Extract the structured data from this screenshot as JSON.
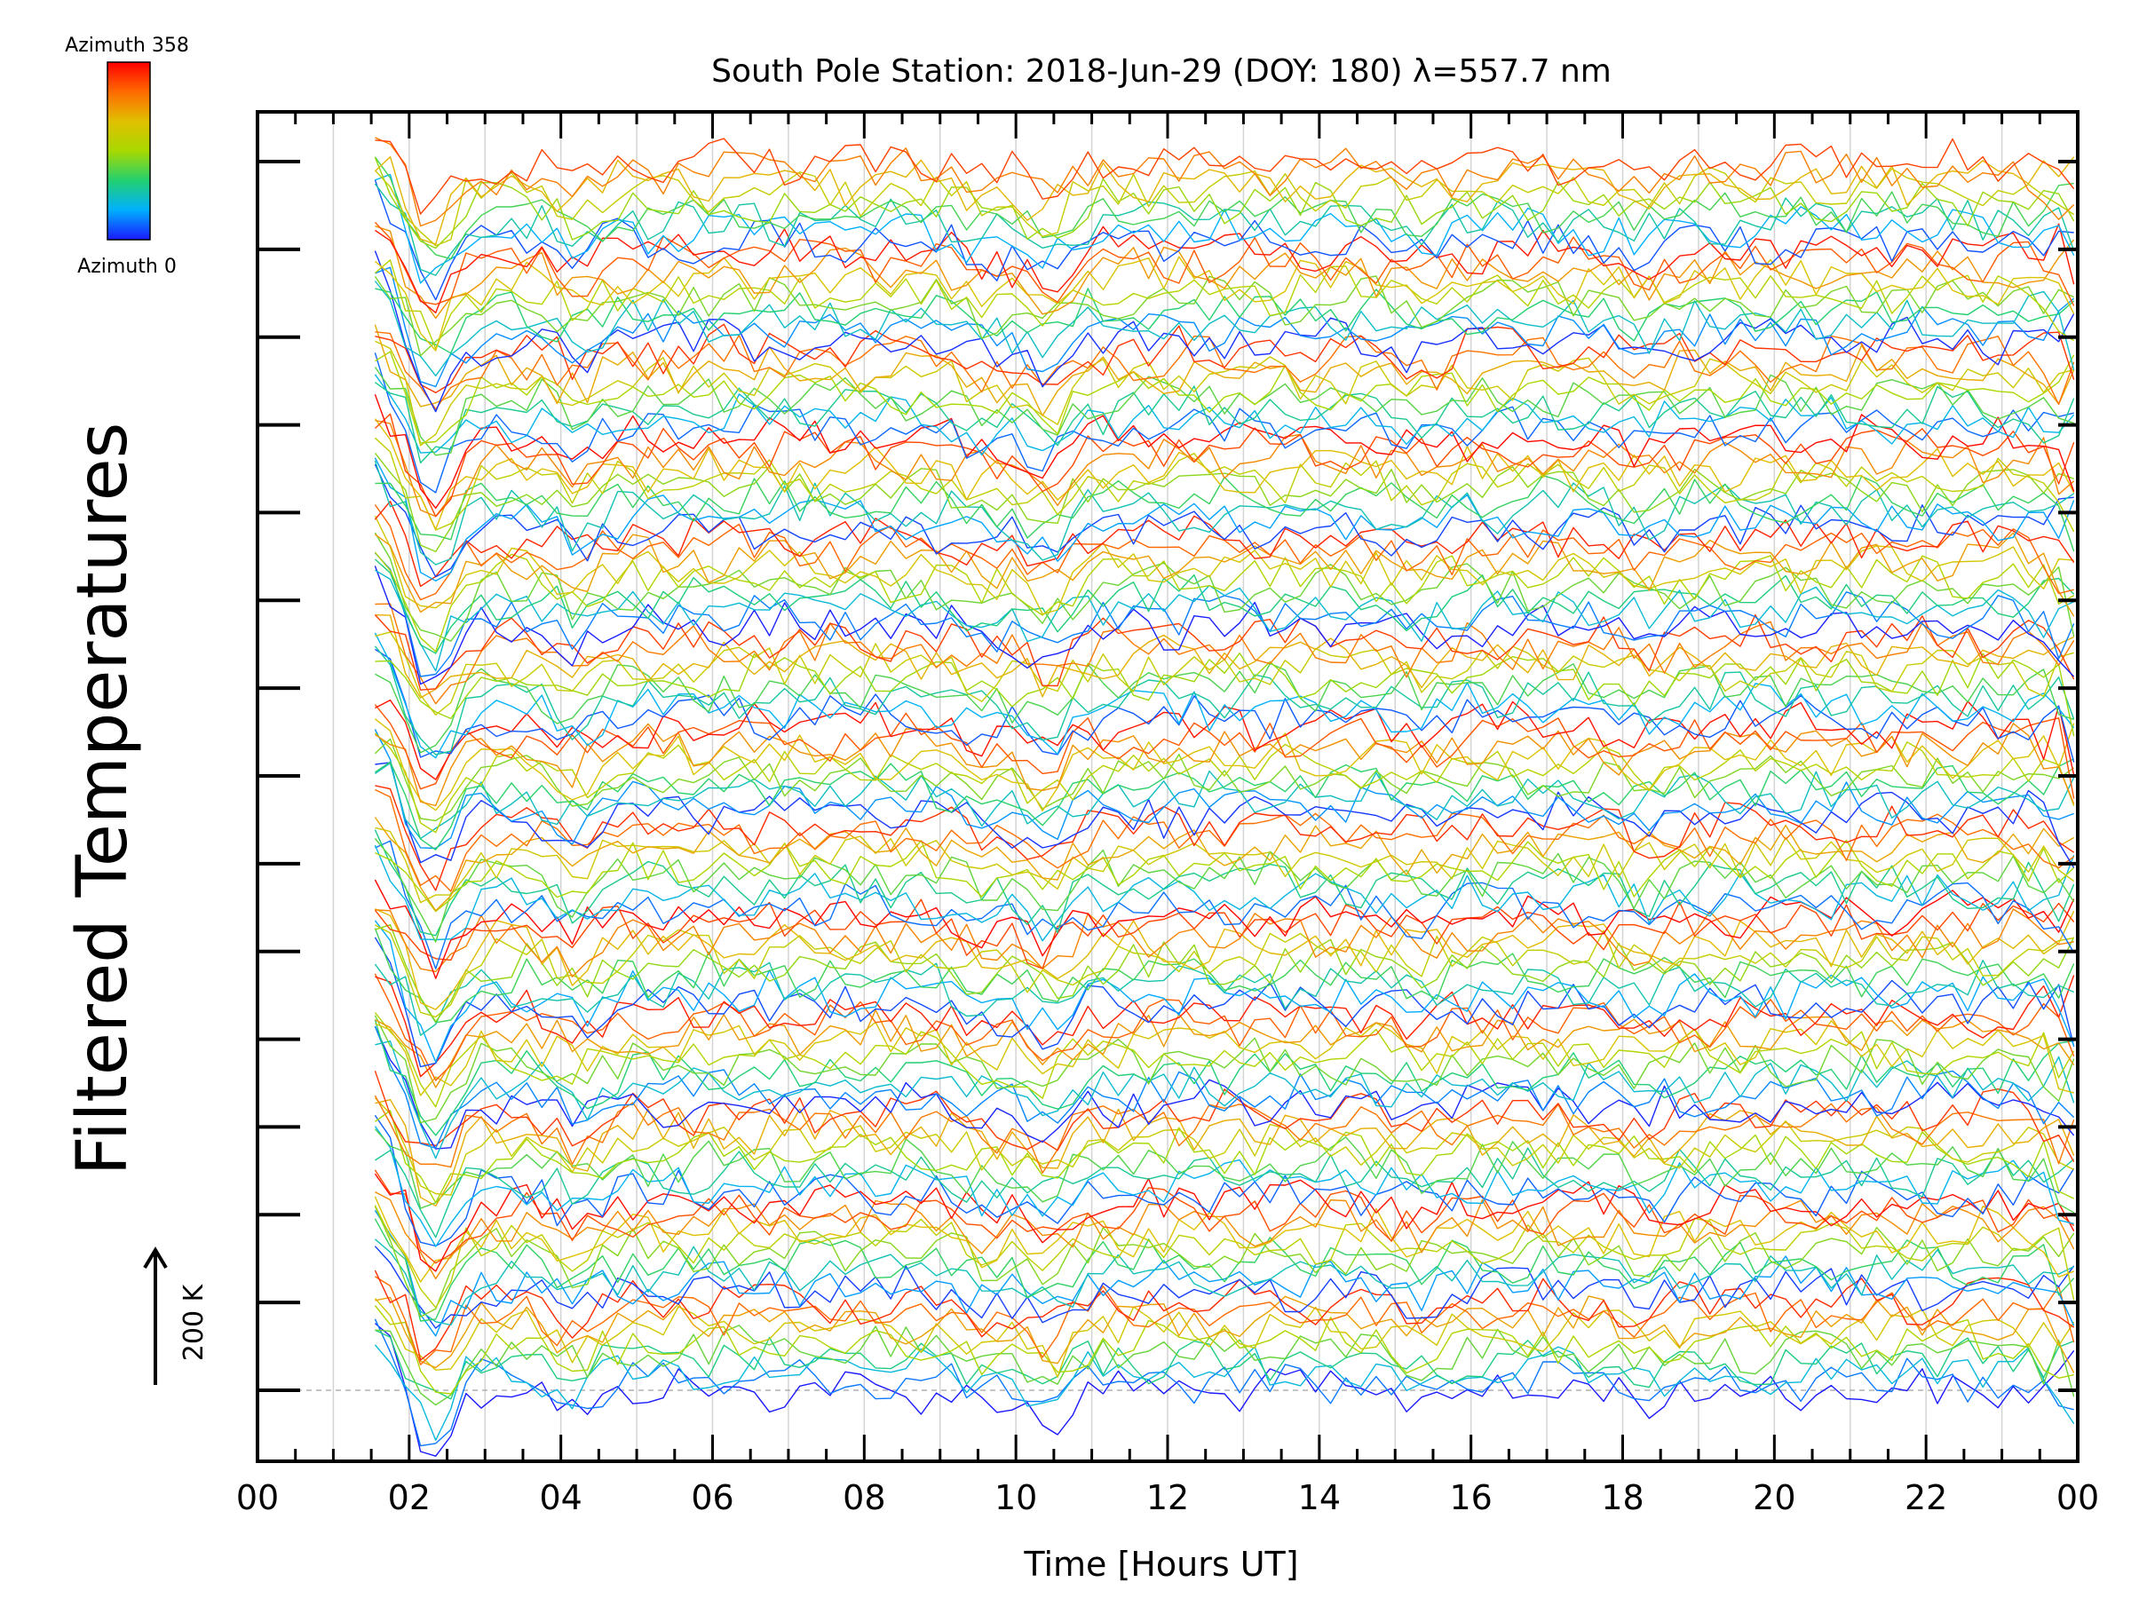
{
  "chart_data": {
    "type": "line",
    "title": "South Pole Station: 2018-Jun-29 (DOY: 180) λ=557.7 nm",
    "xlabel": "Time [Hours UT]",
    "ylabel": "Filtered Temperatures",
    "x_ticks": [
      "00",
      "02",
      "04",
      "06",
      "08",
      "10",
      "12",
      "14",
      "16",
      "18",
      "20",
      "22",
      "00"
    ],
    "xlim": [
      0,
      24
    ],
    "x_minor_step_hours": 0.5,
    "x_vertical_guides_step_hours": 1,
    "y_major_tick_count": 15,
    "series_count": 125,
    "data_start_hour": 1.55,
    "data_end_hour": 23.95,
    "sample_step_hours": 0.2,
    "stack_offset_k": 20,
    "scale_bar": {
      "label": "200 K",
      "value_k": 200
    },
    "colorbar": {
      "top_label": "Azimuth 358",
      "bottom_label": "Azimuth 0",
      "min": 0,
      "max": 358,
      "colormap": [
        "#1a1aff",
        "#00b0ff",
        "#22d070",
        "#a8d800",
        "#e0c000",
        "#ff6a00",
        "#ff0000"
      ]
    },
    "azimuth_groups": 13,
    "grid": "vertical-hourly",
    "legend": "top-left-colorbar"
  },
  "colors": {
    "axis": "#000000",
    "grid": "#d4d4d4",
    "baseline": "#b0b0b0"
  }
}
